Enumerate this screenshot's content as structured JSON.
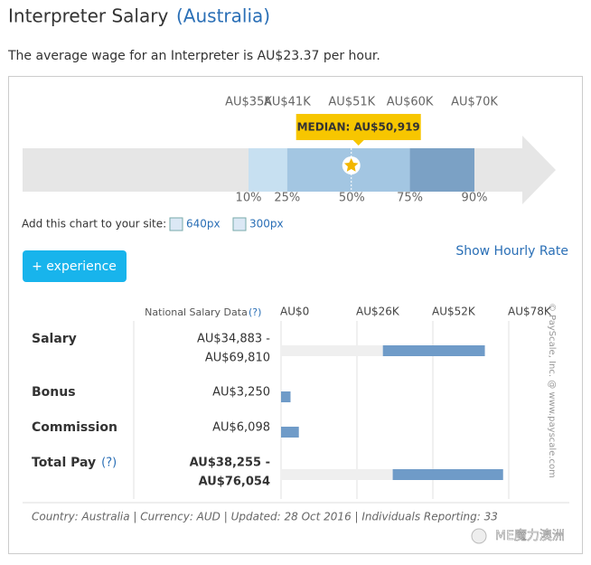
{
  "header": {
    "title": "Interpreter Salary",
    "country": "(Australia)",
    "summary": "The average wage for an Interpreter is AU$23.37 per hour."
  },
  "salary_chart": {
    "xlim": [
      0,
      82600
    ],
    "ticks": [
      {
        "value": 35000,
        "label": "AU$35K"
      },
      {
        "value": 41000,
        "label": "AU$41K"
      },
      {
        "value": 51000,
        "label": "AU$51K"
      },
      {
        "value": 60000,
        "label": "AU$60K"
      },
      {
        "value": 70000,
        "label": "AU$70K"
      }
    ],
    "percentiles": [
      "10%",
      "25%",
      "50%",
      "75%",
      "90%"
    ],
    "band_colors": [
      "#c7e0f1",
      "#a3c6e2",
      "#a3c6e2",
      "#7ba1c5"
    ],
    "median": {
      "value": 50919,
      "label": "MEDIAN: AU$50,919"
    }
  },
  "embed": {
    "text": "Add this chart to your site:",
    "links": [
      "640px",
      "300px"
    ]
  },
  "hourly_link": "Show Hourly Rate",
  "button": "+ experience",
  "pay_table": {
    "heading": "National Salary Data",
    "heading_help": "(?)",
    "xlim": [
      0,
      78000
    ],
    "xticks": [
      {
        "value": 0,
        "label": "AU$0"
      },
      {
        "value": 26000,
        "label": "AU$26K"
      },
      {
        "value": 52000,
        "label": "AU$52K"
      },
      {
        "value": 78000,
        "label": "AU$78K"
      }
    ],
    "bar_color": "#6f9bc8",
    "rows": [
      {
        "name": "Salary",
        "low": 34883,
        "high": 69810,
        "low_label": "AU$34,883 -",
        "high_label": "AU$69,810"
      },
      {
        "name": "Bonus",
        "value": 3250,
        "value_label": "AU$3,250"
      },
      {
        "name": "Commission",
        "value": 6098,
        "value_label": "AU$6,098"
      },
      {
        "name": "Total Pay",
        "help": "(?)",
        "low": 38255,
        "high": 76054,
        "low_label": "AU$38,255 -",
        "high_label": "AU$76,054"
      }
    ]
  },
  "copyright": "© PayScale, Inc. @ www.payscale.com",
  "footer": "Country: Australia | Currency: AUD | Updated: 28 Oct 2016 | Individuals Reporting: 33",
  "watermark": "ME魔力澳洲"
}
